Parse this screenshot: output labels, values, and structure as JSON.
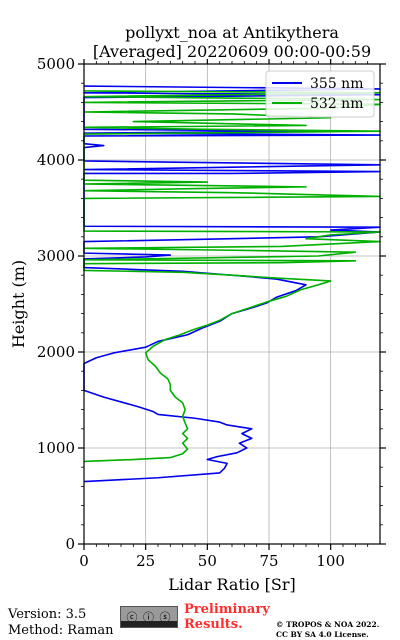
{
  "title_line1": "pollyxt_noa at Antikythera",
  "title_line2": "[Averaged] 20220609 00:00-00:59",
  "footer": {
    "version": "Version: 3.5",
    "method": "Method: Raman",
    "cc_label": "cc by sa",
    "prelim_line1": "Preliminary",
    "prelim_line2": "Results.",
    "license_line1": "© TROPOS & NOA 2022.",
    "license_line2": "CC BY SA 4.0 License."
  },
  "chart_data": {
    "type": "line",
    "xlabel": "Lidar Ratio [Sr]",
    "ylabel": "Height (m)",
    "xlim": [
      0,
      120
    ],
    "ylim": [
      0,
      5000
    ],
    "xticks": [
      0,
      25,
      50,
      75,
      100
    ],
    "yticks": [
      0,
      1000,
      2000,
      3000,
      4000,
      5000
    ],
    "grid": true,
    "legend_position": "top-right",
    "series": [
      {
        "name": "355 nm",
        "color": "#0000ee",
        "points": [
          [
            0,
            650
          ],
          [
            30,
            690
          ],
          [
            55,
            740
          ],
          [
            57,
            790
          ],
          [
            58,
            840
          ],
          [
            50,
            880
          ],
          [
            54,
            910
          ],
          [
            62,
            950
          ],
          [
            66,
            1000
          ],
          [
            63,
            1050
          ],
          [
            68,
            1100
          ],
          [
            64,
            1150
          ],
          [
            68,
            1200
          ],
          [
            58,
            1240
          ],
          [
            55,
            1270
          ],
          [
            45,
            1310
          ],
          [
            30,
            1350
          ],
          [
            28,
            1380
          ],
          [
            22,
            1430
          ],
          [
            15,
            1480
          ],
          [
            8,
            1530
          ],
          [
            0,
            1600
          ],
          [
            0,
            1880
          ],
          [
            5,
            1940
          ],
          [
            12,
            1990
          ],
          [
            25,
            2050
          ],
          [
            30,
            2110
          ],
          [
            42,
            2180
          ],
          [
            48,
            2250
          ],
          [
            55,
            2320
          ],
          [
            60,
            2400
          ],
          [
            68,
            2460
          ],
          [
            74,
            2510
          ],
          [
            78,
            2570
          ],
          [
            86,
            2640
          ],
          [
            90,
            2700
          ],
          [
            78,
            2760
          ],
          [
            65,
            2790
          ],
          [
            55,
            2810
          ],
          [
            40,
            2840
          ],
          [
            20,
            2860
          ],
          [
            0,
            2880
          ],
          [
            0,
            2970
          ],
          [
            25,
            2990
          ],
          [
            35,
            3010
          ],
          [
            0,
            3030
          ],
          [
            0,
            3150
          ],
          [
            60,
            3180
          ],
          [
            95,
            3200
          ],
          [
            120,
            3250
          ],
          [
            100,
            3270
          ],
          [
            120,
            3300
          ],
          [
            0,
            3310
          ],
          [
            0,
            3860
          ],
          [
            60,
            3860
          ],
          [
            120,
            3880
          ],
          [
            0,
            3900
          ],
          [
            120,
            3950
          ],
          [
            0,
            3990
          ],
          [
            0,
            4130
          ],
          [
            8,
            4150
          ],
          [
            0,
            4170
          ],
          [
            0,
            4250
          ],
          [
            120,
            4260
          ],
          [
            0,
            4280
          ],
          [
            95,
            4300
          ],
          [
            0,
            4320
          ],
          [
            0,
            4650
          ],
          [
            120,
            4680
          ],
          [
            0,
            4700
          ],
          [
            120,
            4740
          ],
          [
            0,
            4770
          ]
        ]
      },
      {
        "name": "532 nm",
        "color": "#00b000",
        "points": [
          [
            0,
            860
          ],
          [
            20,
            880
          ],
          [
            35,
            900
          ],
          [
            40,
            940
          ],
          [
            42,
            990
          ],
          [
            40,
            1050
          ],
          [
            42,
            1100
          ],
          [
            40,
            1150
          ],
          [
            42,
            1200
          ],
          [
            41,
            1260
          ],
          [
            40,
            1330
          ],
          [
            41,
            1400
          ],
          [
            40,
            1470
          ],
          [
            37,
            1530
          ],
          [
            35,
            1600
          ],
          [
            35,
            1660
          ],
          [
            34,
            1720
          ],
          [
            31,
            1780
          ],
          [
            29,
            1850
          ],
          [
            26,
            1920
          ],
          [
            25,
            1990
          ],
          [
            28,
            2060
          ],
          [
            33,
            2130
          ],
          [
            39,
            2180
          ],
          [
            44,
            2230
          ],
          [
            50,
            2280
          ],
          [
            55,
            2330
          ],
          [
            60,
            2400
          ],
          [
            67,
            2460
          ],
          [
            74,
            2520
          ],
          [
            82,
            2580
          ],
          [
            88,
            2650
          ],
          [
            95,
            2700
          ],
          [
            100,
            2740
          ],
          [
            78,
            2770
          ],
          [
            60,
            2800
          ],
          [
            40,
            2830
          ],
          [
            0,
            2850
          ],
          [
            0,
            2920
          ],
          [
            80,
            2930
          ],
          [
            110,
            2950
          ],
          [
            0,
            2960
          ],
          [
            95,
            3000
          ],
          [
            110,
            3040
          ],
          [
            60,
            3060
          ],
          [
            0,
            3080
          ],
          [
            80,
            3100
          ],
          [
            120,
            3150
          ],
          [
            90,
            3180
          ],
          [
            100,
            3220
          ],
          [
            120,
            3250
          ],
          [
            0,
            3260
          ],
          [
            0,
            3600
          ],
          [
            120,
            3620
          ],
          [
            60,
            3660
          ],
          [
            0,
            3680
          ],
          [
            40,
            3700
          ],
          [
            90,
            3720
          ],
          [
            0,
            3750
          ],
          [
            50,
            3770
          ],
          [
            0,
            3790
          ],
          [
            0,
            4270
          ],
          [
            120,
            4300
          ],
          [
            50,
            4320
          ],
          [
            0,
            4340
          ],
          [
            90,
            4360
          ],
          [
            20,
            4400
          ],
          [
            100,
            4440
          ],
          [
            60,
            4480
          ],
          [
            0,
            4500
          ],
          [
            100,
            4540
          ],
          [
            120,
            4580
          ],
          [
            0,
            4600
          ],
          [
            120,
            4630
          ],
          [
            0,
            4660
          ],
          [
            120,
            4700
          ],
          [
            0,
            4720
          ]
        ]
      }
    ]
  }
}
